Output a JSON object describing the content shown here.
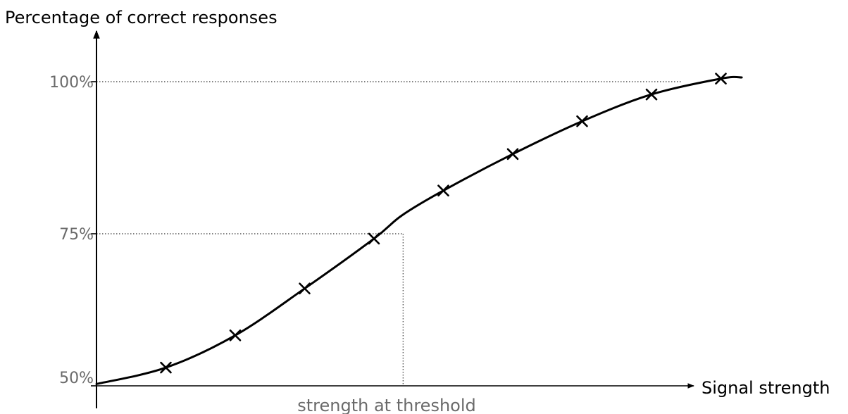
{
  "chart_data": {
    "type": "line",
    "ylabel": "Percentage of correct responses",
    "xlabel": "Signal strength",
    "yticks": [
      {
        "value": 100,
        "label": "100%"
      },
      {
        "value": 75,
        "label": "75%"
      },
      {
        "value": 50,
        "label": "50%"
      }
    ],
    "ylim": [
      50,
      103
    ],
    "grid": false,
    "marker": "x",
    "points": [
      {
        "x": 1,
        "y": 53.0
      },
      {
        "x": 2,
        "y": 58.3
      },
      {
        "x": 3,
        "y": 66.0
      },
      {
        "x": 4,
        "y": 74.2
      },
      {
        "x": 5,
        "y": 82.1
      },
      {
        "x": 6,
        "y": 88.1
      },
      {
        "x": 7,
        "y": 93.5
      },
      {
        "x": 8,
        "y": 97.9
      },
      {
        "x": 9,
        "y": 100.5
      }
    ],
    "curve": [
      {
        "x": 0,
        "y": 50.3
      },
      {
        "x": 1,
        "y": 53.0
      },
      {
        "x": 2,
        "y": 58.3
      },
      {
        "x": 3,
        "y": 66.0
      },
      {
        "x": 4,
        "y": 74.2
      },
      {
        "x": 4.4,
        "y": 78.0
      },
      {
        "x": 5,
        "y": 82.1
      },
      {
        "x": 6,
        "y": 88.1
      },
      {
        "x": 7,
        "y": 93.5
      },
      {
        "x": 8,
        "y": 97.9
      },
      {
        "x": 9,
        "y": 100.5
      },
      {
        "x": 9.3,
        "y": 100.7
      }
    ],
    "reference_lines": {
      "max_percent": 100,
      "threshold_percent": 75,
      "threshold_x": 4.42
    },
    "threshold_label": "strength at threshold",
    "colors": {
      "curve": "#000000",
      "axis": "#000000",
      "reference": "#555555",
      "tick_text": "#6a6a6a"
    }
  }
}
